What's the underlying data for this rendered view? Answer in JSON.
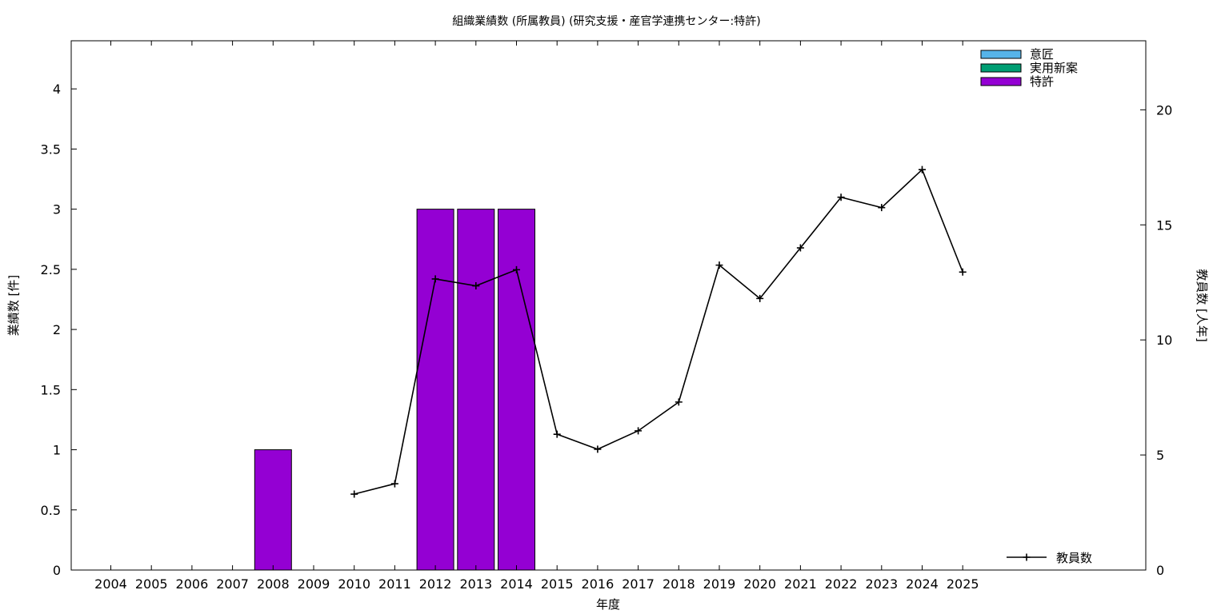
{
  "chart_data": {
    "type": "bar",
    "title": "組織業績数 (所属教員) (研究支援・産官学連携センター:特許)",
    "xlabel": "年度",
    "ylabel": "業績数 [件]",
    "y2label": "教員数 [人年]",
    "categories": [
      "2004",
      "2005",
      "2006",
      "2007",
      "2008",
      "2009",
      "2010",
      "2011",
      "2012",
      "2013",
      "2014",
      "2015",
      "2016",
      "2017",
      "2018",
      "2019",
      "2020",
      "2021",
      "2022",
      "2023",
      "2024",
      "2025"
    ],
    "ylim": [
      0,
      4.4
    ],
    "yticks": [
      "0",
      "0.5",
      "1",
      "1.5",
      "2",
      "2.5",
      "3",
      "3.5",
      "4"
    ],
    "y2lim": [
      0,
      23
    ],
    "y2ticks": [
      "0",
      "5",
      "10",
      "15",
      "20"
    ],
    "grid": false,
    "legend_position": "top-right",
    "series": [
      {
        "name": "意匠",
        "kind": "bar",
        "color": "#56b4e9",
        "values": [
          0,
          0,
          0,
          0,
          0,
          0,
          0,
          0,
          0,
          0,
          0,
          0,
          0,
          0,
          0,
          0,
          0,
          0,
          0,
          0,
          0,
          0
        ]
      },
      {
        "name": "実用新案",
        "kind": "bar",
        "color": "#009e73",
        "values": [
          0,
          0,
          0,
          0,
          0,
          0,
          0,
          0,
          0,
          0,
          0,
          0,
          0,
          0,
          0,
          0,
          0,
          0,
          0,
          0,
          0,
          0
        ]
      },
      {
        "name": "特許",
        "kind": "bar",
        "color": "#9400d3",
        "values": [
          0,
          0,
          0,
          0,
          1,
          0,
          0,
          0,
          3,
          3,
          3,
          0,
          0,
          0,
          0,
          0,
          0,
          0,
          0,
          0,
          0,
          0
        ]
      }
    ],
    "line_series": {
      "name": "教員数",
      "axis": "right",
      "color": "#000000",
      "legend_position": "bottom-right",
      "x": [
        "2010",
        "2011",
        "2012",
        "2013",
        "2014",
        "2015",
        "2016",
        "2017",
        "2018",
        "2019",
        "2020",
        "2021",
        "2022",
        "2023",
        "2024",
        "2025"
      ],
      "values": [
        3.3,
        3.75,
        12.65,
        12.35,
        13.05,
        5.9,
        5.25,
        6.05,
        7.3,
        13.25,
        11.8,
        14.0,
        16.2,
        15.75,
        17.4,
        12.95
      ]
    }
  }
}
